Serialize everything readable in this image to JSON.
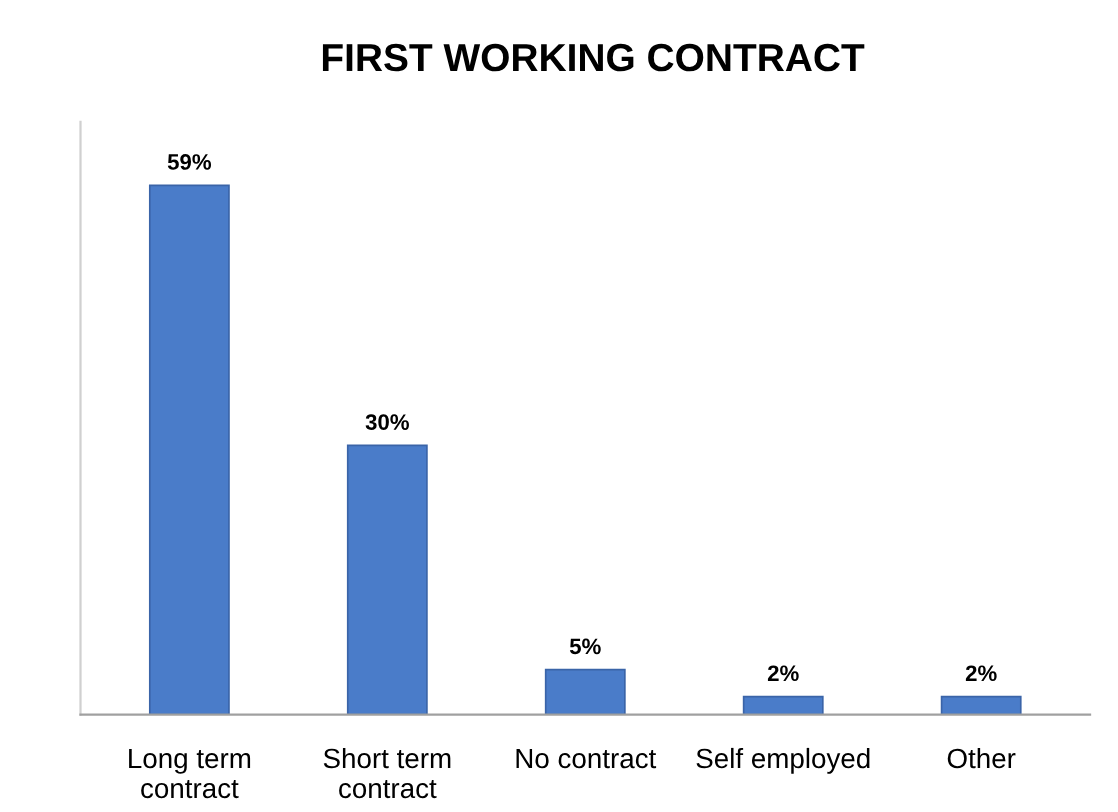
{
  "chart_data": {
    "type": "bar",
    "title": "FIRST WORKING CONTRACT",
    "categories": [
      "Long term\ncontract",
      "Short term\ncontract",
      "No contract",
      "Self employed",
      "Other"
    ],
    "values": [
      59,
      30,
      5,
      2,
      2
    ],
    "value_labels": [
      "59%",
      "30%",
      "5%",
      "2%",
      "2%"
    ],
    "color": "#4a7cc9",
    "grid": false,
    "legend": false
  }
}
